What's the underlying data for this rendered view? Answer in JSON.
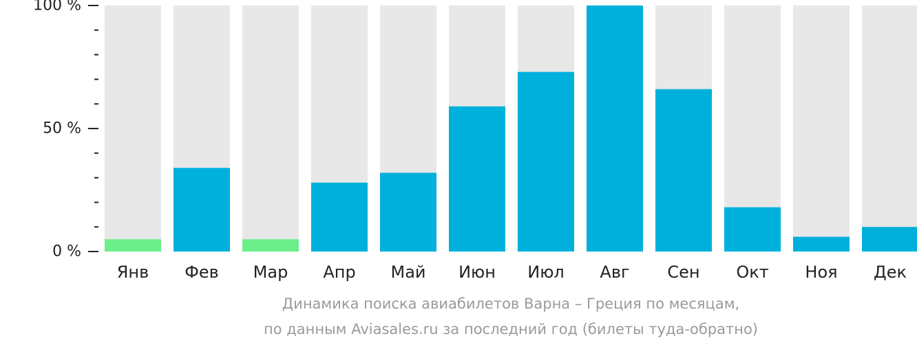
{
  "chart_data": {
    "type": "bar",
    "categories": [
      "Янв",
      "Фев",
      "Мар",
      "Апр",
      "Май",
      "Июн",
      "Июл",
      "Авг",
      "Сен",
      "Окт",
      "Ноя",
      "Дек"
    ],
    "values": [
      5,
      34,
      5,
      28,
      32,
      59,
      73,
      100,
      66,
      18,
      6,
      10
    ],
    "highlight": [
      true,
      false,
      true,
      false,
      false,
      false,
      false,
      false,
      false,
      false,
      false,
      false
    ],
    "ylim": [
      0,
      100
    ],
    "yticks": [
      {
        "value": 0,
        "label": "0 %"
      },
      {
        "value": 50,
        "label": "50 %"
      },
      {
        "value": 100,
        "label": "100 %"
      }
    ],
    "minor_tick_step": 10,
    "grid": false,
    "colors": {
      "bar": "#00b0dc",
      "highlight": "#6bef8a",
      "track": "#e8e8e8",
      "axis": "#222222"
    },
    "caption": {
      "line1": "Динамика поиска авиабилетов Варна – Греция по месяцам,",
      "line2": "по данным Aviasales.ru за последний год (билеты туда-обратно)"
    }
  }
}
